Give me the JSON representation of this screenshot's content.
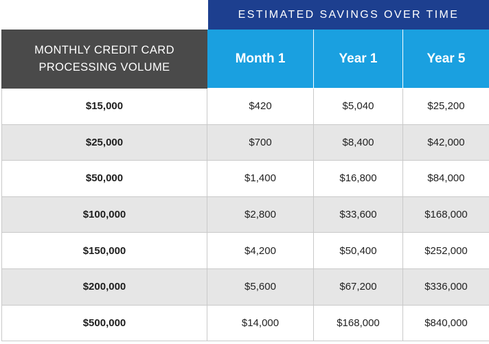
{
  "banner": {
    "title": "ESTIMATED SAVINGS OVER TIME"
  },
  "table": {
    "volume_header_line1": "MONTHLY CREDIT CARD",
    "volume_header_line2": "PROCESSING VOLUME",
    "period_headers": [
      "Month 1",
      "Year 1",
      "Year 5"
    ],
    "rows": [
      {
        "volume": "$15,000",
        "month1": "$420",
        "year1": "$5,040",
        "year5": "$25,200"
      },
      {
        "volume": "$25,000",
        "month1": "$700",
        "year1": "$8,400",
        "year5": "$42,000"
      },
      {
        "volume": "$50,000",
        "month1": "$1,400",
        "year1": "$16,800",
        "year5": "$84,000"
      },
      {
        "volume": "$100,000",
        "month1": "$2,800",
        "year1": "$33,600",
        "year5": "$168,000"
      },
      {
        "volume": "$150,000",
        "month1": "$4,200",
        "year1": "$50,400",
        "year5": "$252,000"
      },
      {
        "volume": "$200,000",
        "month1": "$5,600",
        "year1": "$67,200",
        "year5": "$336,000"
      },
      {
        "volume": "$500,000",
        "month1": "$14,000",
        "year1": "$168,000",
        "year5": "$840,000"
      }
    ]
  },
  "colors": {
    "banner_bg": "#1d3f8f",
    "volume_header_bg": "#4a4a4a",
    "period_header_bg": "#1aa0e0",
    "alt_row_bg": "#e6e6e6"
  }
}
